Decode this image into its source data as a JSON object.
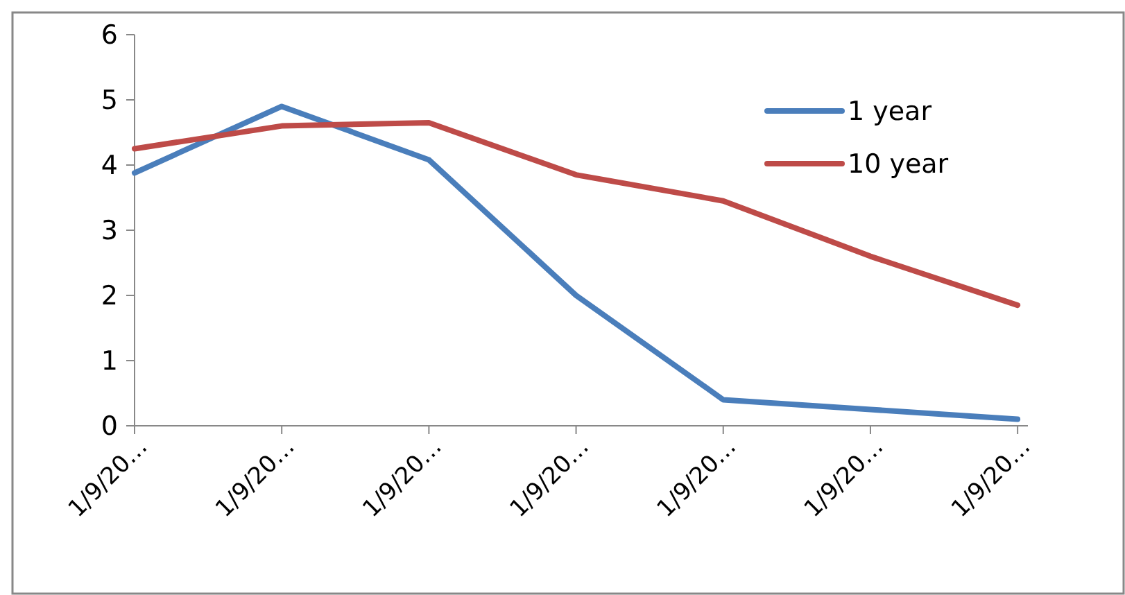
{
  "chart_data": {
    "type": "line",
    "categories": [
      "1/9/20…",
      "1/9/20…",
      "1/9/20…",
      "1/9/20…",
      "1/9/20…",
      "1/9/20…",
      "1/9/20…"
    ],
    "series": [
      {
        "name": "1 year",
        "color": "#4a7ebb",
        "values": [
          3.88,
          4.9,
          4.08,
          2.0,
          0.4,
          0.25,
          0.1
        ]
      },
      {
        "name": "10 year",
        "color": "#be4b48",
        "values": [
          4.25,
          4.6,
          4.65,
          3.85,
          3.45,
          2.6,
          1.85
        ]
      }
    ],
    "ylim": [
      0,
      6
    ],
    "yticks": [
      0,
      1,
      2,
      3,
      4,
      5,
      6
    ],
    "grid": false,
    "legend": "top right",
    "marker": "none",
    "line_style": "solid"
  }
}
